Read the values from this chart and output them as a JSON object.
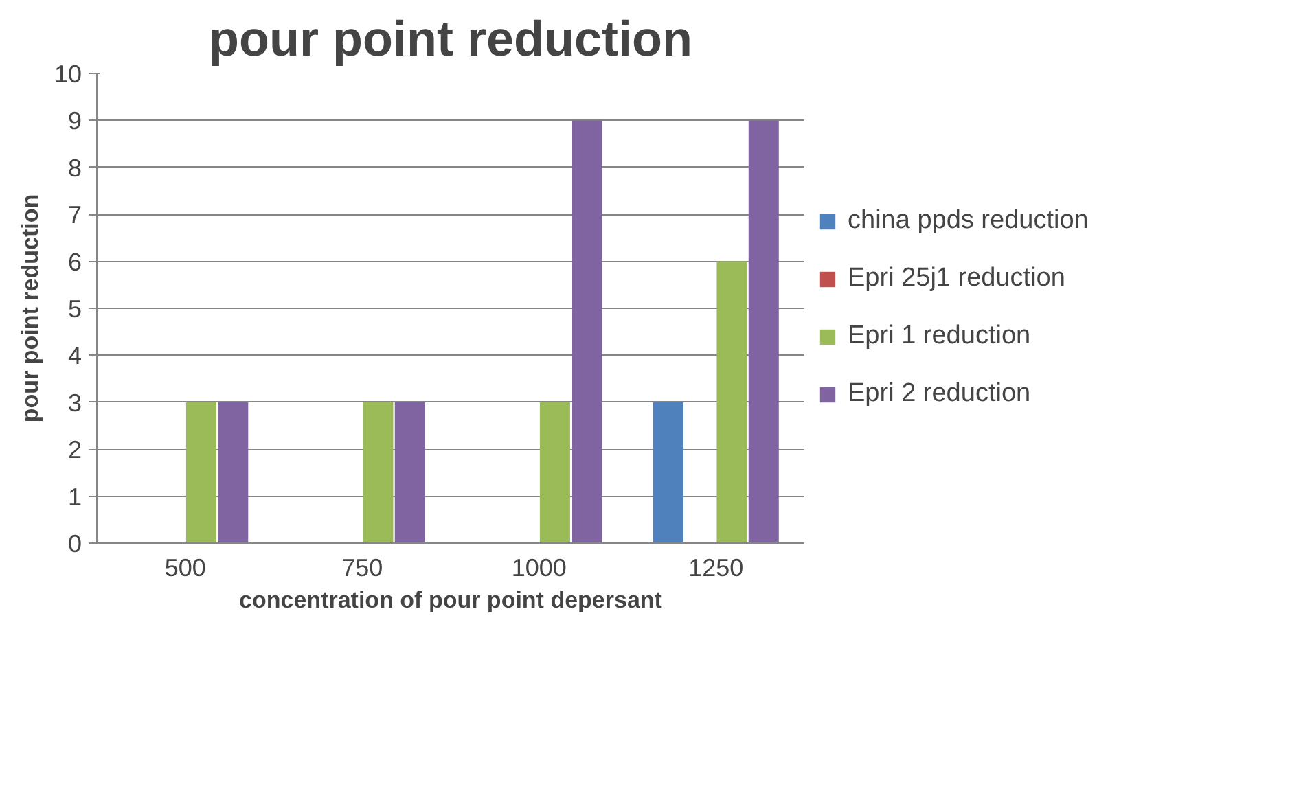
{
  "chart_data": {
    "type": "bar",
    "title": "pour point reduction",
    "xlabel": "concentration of pour point depersant",
    "ylabel": "pour point reduction",
    "categories": [
      "500",
      "750",
      "1000",
      "1250"
    ],
    "series": [
      {
        "name": "china ppds reduction",
        "color": "#4f81bd",
        "values": [
          0,
          0,
          0,
          3
        ]
      },
      {
        "name": "Epri 25j1 reduction",
        "color": "#c0504d",
        "values": [
          0,
          0,
          0,
          0
        ]
      },
      {
        "name": "Epri 1 reduction",
        "color": "#9bbb59",
        "values": [
          3,
          3,
          3,
          6
        ]
      },
      {
        "name": "Epri 2 reduction",
        "color": "#8064a2",
        "values": [
          3,
          3,
          9,
          9
        ]
      }
    ],
    "ylim": [
      0,
      10
    ],
    "yticks": [
      0,
      1,
      2,
      3,
      4,
      5,
      6,
      7,
      8,
      9,
      10
    ],
    "grid": "y",
    "legend": "right"
  }
}
